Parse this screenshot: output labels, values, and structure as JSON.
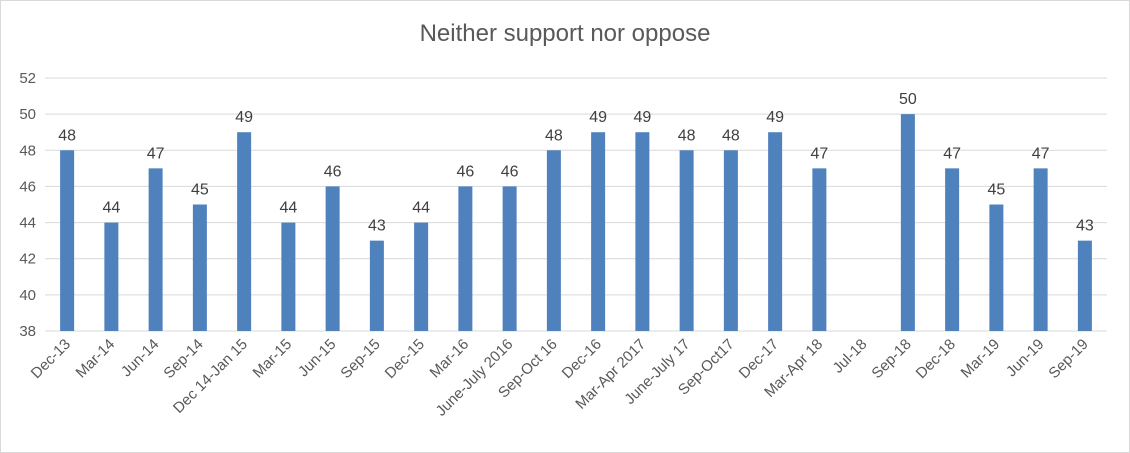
{
  "chart_data": {
    "type": "bar",
    "title": "Neither support nor oppose",
    "xlabel": "",
    "ylabel": "",
    "ylim": [
      38,
      52
    ],
    "yticks": [
      38,
      40,
      42,
      44,
      46,
      48,
      50,
      52
    ],
    "grid": true,
    "legend": "none",
    "bar_color": "#4f81bd",
    "categories": [
      "Dec-13",
      "Mar-14",
      "Jun-14",
      "Sep-14",
      "Dec 14-Jan 15",
      "Mar-15",
      "Jun-15",
      "Sep-15",
      "Dec-15",
      "Mar-16",
      "June-July 2016",
      "Sep-Oct 16",
      "Dec-16",
      "Mar-Apr 2017",
      "June-July 17",
      "Sep-Oct17",
      "Dec-17",
      "Mar-Apr 18",
      "Jul-18",
      "Sep-18",
      "Dec-18",
      "Mar-19",
      "Jun-19",
      "Sep-19"
    ],
    "values": [
      48,
      44,
      47,
      45,
      49,
      44,
      46,
      43,
      44,
      46,
      46,
      48,
      49,
      49,
      48,
      48,
      49,
      47,
      null,
      50,
      47,
      45,
      47,
      43
    ]
  }
}
